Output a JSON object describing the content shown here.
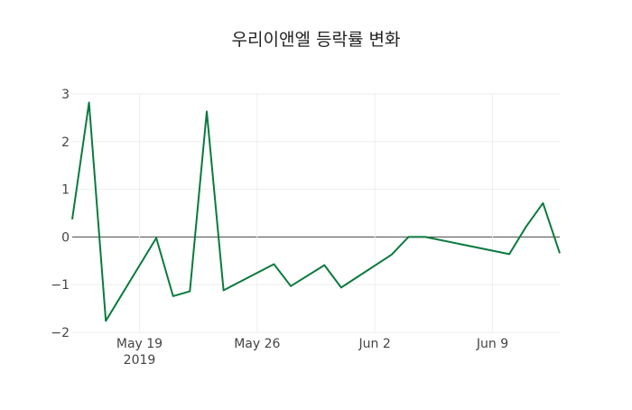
{
  "chart_data": {
    "type": "line",
    "title": "우리이앤엘 등락률 변화",
    "xlabel": "",
    "ylabel": "",
    "ylim": [
      -2,
      3
    ],
    "xlim": [
      "2019-05-15",
      "2019-06-13"
    ],
    "grid": true,
    "line_color": "#0b7a3e",
    "yticks": [
      3,
      2,
      1,
      0,
      -1,
      -2
    ],
    "ytick_labels": [
      "3",
      "2",
      "1",
      "0",
      "−1",
      "−2"
    ],
    "xticks": [
      {
        "date": "2019-05-19",
        "label": "May 19",
        "sublabel": "2019"
      },
      {
        "date": "2019-05-26",
        "label": "May 26"
      },
      {
        "date": "2019-06-02",
        "label": "Jun 2"
      },
      {
        "date": "2019-06-09",
        "label": "Jun 9"
      }
    ],
    "series": [
      {
        "name": "등락률",
        "x": [
          "2019-05-15",
          "2019-05-16",
          "2019-05-17",
          "2019-05-20",
          "2019-05-21",
          "2019-05-22",
          "2019-05-23",
          "2019-05-24",
          "2019-05-27",
          "2019-05-28",
          "2019-05-30",
          "2019-05-31",
          "2019-06-03",
          "2019-06-04",
          "2019-06-05",
          "2019-06-10",
          "2019-06-11",
          "2019-06-12",
          "2019-06-13"
        ],
        "values": [
          0.37,
          2.82,
          -1.76,
          -0.02,
          -1.24,
          -1.14,
          2.63,
          -1.12,
          -0.57,
          -1.03,
          -0.59,
          -1.06,
          -0.37,
          0.0,
          0.0,
          -0.36,
          0.22,
          0.71,
          -0.34
        ]
      }
    ]
  }
}
